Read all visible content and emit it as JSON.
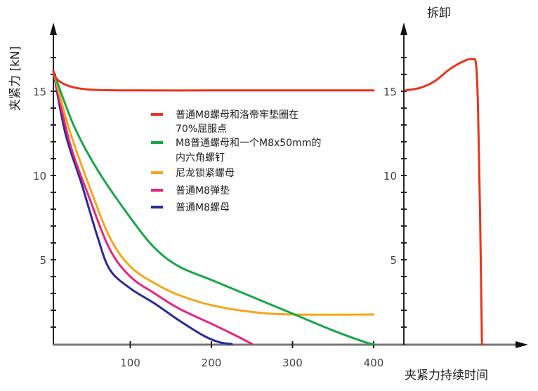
{
  "chart_data": [
    {
      "type": "line",
      "title": "",
      "xlabel": "夹紧力持续时间",
      "ylabel": "夹紧力 [kN]",
      "xlim": [
        0,
        400
      ],
      "ylim": [
        0,
        18
      ],
      "x_ticks": [
        "100",
        "200",
        "300",
        "400"
      ],
      "x_tick_values": [
        100,
        200,
        300,
        400
      ],
      "y_ticks": [
        "5",
        "10",
        "15"
      ],
      "y_tick_values": [
        5,
        10,
        15
      ],
      "grid": false,
      "legend_position": "center",
      "series": [
        {
          "name": "普通M8螺母和洛帝牢垫圈在70%屈服点",
          "legend_lines": [
            "普通M8螺母和洛帝牢垫圈在",
            "70%屈服点"
          ],
          "color": "#e8341c",
          "points": [
            [
              0,
              16.2
            ],
            [
              10,
              15.7
            ],
            [
              25,
              15.3
            ],
            [
              50,
              15.1
            ],
            [
              100,
              15.05
            ],
            [
              200,
              15.05
            ],
            [
              300,
              15.05
            ],
            [
              400,
              15.05
            ]
          ]
        },
        {
          "name": "M8普通螺母和一个M8x50mm的内六角螺钉",
          "legend_lines": [
            "M8普通螺母和一个M8x50mm的",
            "内六角螺钉"
          ],
          "color": "#1aa64a",
          "points": [
            [
              0,
              16.2
            ],
            [
              30,
              13.0
            ],
            [
              60,
              10.3
            ],
            [
              100,
              7.5
            ],
            [
              130,
              5.7
            ],
            [
              160,
              4.6
            ],
            [
              200,
              3.8
            ],
            [
              250,
              2.8
            ],
            [
              300,
              1.8
            ],
            [
              350,
              0.8
            ],
            [
              390,
              0.1
            ],
            [
              400,
              0
            ]
          ]
        },
        {
          "name": "尼龙锁紧螺母",
          "legend_lines": [
            "尼龙锁紧螺母"
          ],
          "color": "#f4a61c",
          "points": [
            [
              0,
              16.2
            ],
            [
              25,
              12.7
            ],
            [
              50,
              9.3
            ],
            [
              75,
              6.3
            ],
            [
              100,
              4.6
            ],
            [
              130,
              3.6
            ],
            [
              160,
              2.9
            ],
            [
              200,
              2.3
            ],
            [
              250,
              1.9
            ],
            [
              300,
              1.75
            ],
            [
              400,
              1.75
            ]
          ]
        },
        {
          "name": "普通M8弹垫",
          "legend_lines": [
            "普通M8弹垫"
          ],
          "color": "#e8247c",
          "points": [
            [
              0,
              16.2
            ],
            [
              25,
              12.0
            ],
            [
              50,
              8.6
            ],
            [
              75,
              5.6
            ],
            [
              100,
              4.0
            ],
            [
              130,
              3.0
            ],
            [
              160,
              2.1
            ],
            [
              200,
              1.2
            ],
            [
              230,
              0.5
            ],
            [
              250,
              0
            ]
          ]
        },
        {
          "name": "普通M8螺母",
          "legend_lines": [
            "普通M8螺母"
          ],
          "color": "#2a2a96",
          "points": [
            [
              0,
              16.2
            ],
            [
              20,
              12.5
            ],
            [
              40,
              9.5
            ],
            [
              60,
              6.3
            ],
            [
              75,
              4.4
            ],
            [
              100,
              3.3
            ],
            [
              130,
              2.4
            ],
            [
              160,
              1.4
            ],
            [
              190,
              0.5
            ],
            [
              210,
              0.1
            ],
            [
              225,
              0
            ]
          ]
        }
      ]
    },
    {
      "type": "line",
      "title": "拆卸",
      "ylim": [
        0,
        18
      ],
      "y_ticks": [
        "5",
        "10",
        "15"
      ],
      "y_tick_values": [
        5,
        10,
        15
      ],
      "x_units": "relative",
      "series": [
        {
          "name": "拆卸",
          "color": "#e8341c",
          "points": [
            [
              0,
              15.05
            ],
            [
              15,
              15.2
            ],
            [
              30,
              15.6
            ],
            [
              45,
              16.3
            ],
            [
              60,
              16.8
            ],
            [
              68,
              16.9
            ],
            [
              72,
              16.6
            ],
            [
              74,
              14.0
            ],
            [
              76,
              8.0
            ],
            [
              78,
              0
            ]
          ]
        }
      ]
    }
  ]
}
